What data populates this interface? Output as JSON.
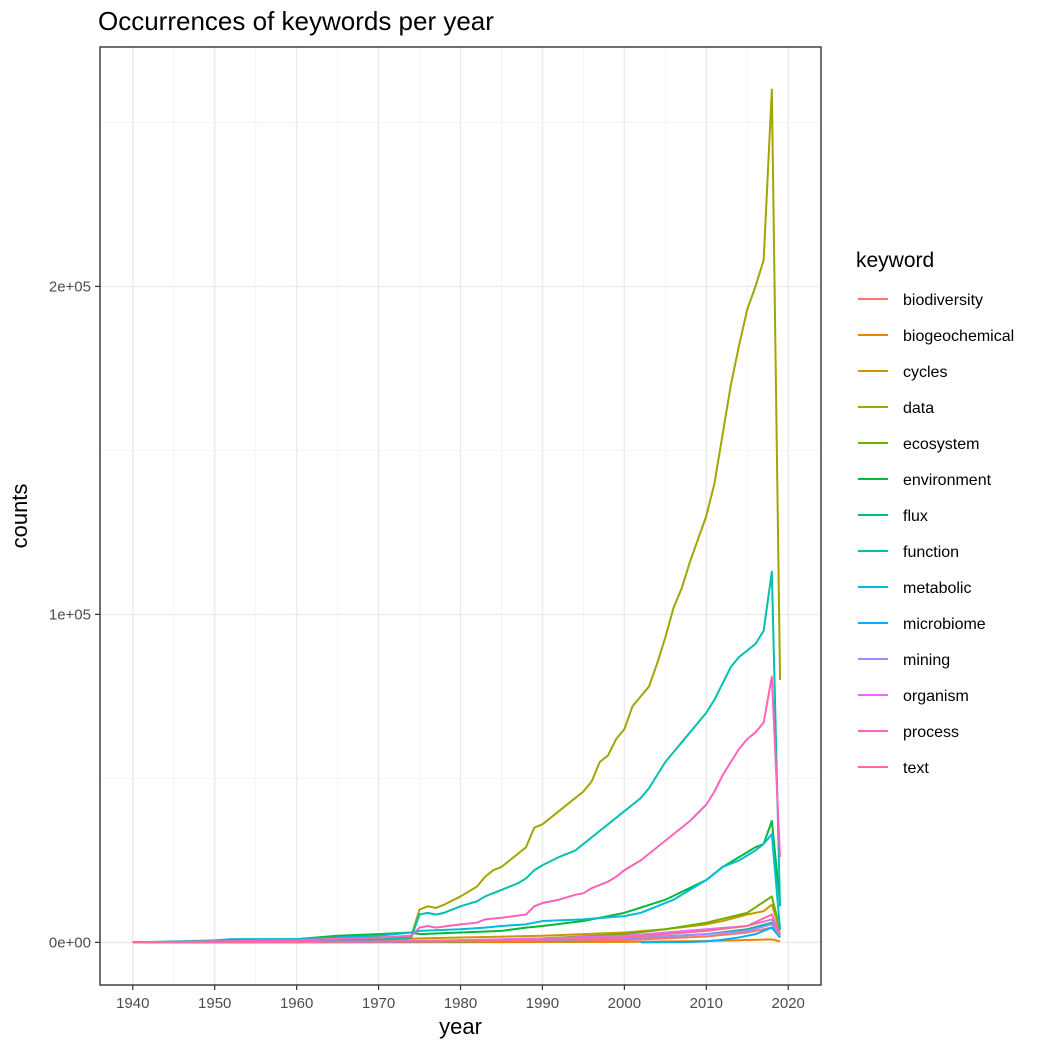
{
  "chart_data": {
    "type": "line",
    "title": "Occurrences of keywords per year",
    "xlabel": "year",
    "ylabel": "counts",
    "xlim": [
      1936,
      2024
    ],
    "ylim": [
      -13000,
      273000
    ],
    "x_ticks": [
      1940,
      1950,
      1960,
      1970,
      1980,
      1990,
      2000,
      2010,
      2020
    ],
    "x_tick_labels": [
      "1940",
      "1950",
      "1960",
      "1970",
      "1980",
      "1990",
      "2000",
      "2010",
      "2020"
    ],
    "y_ticks": [
      0,
      100000,
      200000
    ],
    "y_tick_labels": [
      "0e+00",
      "1e+05",
      "2e+05"
    ],
    "grid": true,
    "legend": {
      "title": "keyword",
      "position": "right"
    },
    "series": [
      {
        "name": "biodiversity",
        "color": "#F8766D",
        "points": [
          [
            1940,
            0
          ],
          [
            1970,
            50
          ],
          [
            1990,
            300
          ],
          [
            2000,
            700
          ],
          [
            2010,
            1800
          ],
          [
            2015,
            3000
          ],
          [
            2018,
            4500
          ],
          [
            2019,
            1500
          ]
        ]
      },
      {
        "name": "biogeochemical",
        "color": "#E58700",
        "points": [
          [
            1940,
            0
          ],
          [
            1980,
            50
          ],
          [
            2000,
            150
          ],
          [
            2010,
            400
          ],
          [
            2018,
            900
          ],
          [
            2019,
            300
          ]
        ]
      },
      {
        "name": "cycles",
        "color": "#C99800",
        "points": [
          [
            1940,
            0
          ],
          [
            1950,
            200
          ],
          [
            1960,
            400
          ],
          [
            1970,
            700
          ],
          [
            1975,
            1200
          ],
          [
            1980,
            1500
          ],
          [
            1990,
            2000
          ],
          [
            2000,
            3000
          ],
          [
            2005,
            4000
          ],
          [
            2010,
            5500
          ],
          [
            2012,
            6500
          ],
          [
            2015,
            8500
          ],
          [
            2017,
            9500
          ],
          [
            2018,
            11500
          ],
          [
            2019,
            3500
          ]
        ]
      },
      {
        "name": "data",
        "color": "#A3A500",
        "points": [
          [
            1940,
            0
          ],
          [
            1950,
            300
          ],
          [
            1960,
            600
          ],
          [
            1970,
            1200
          ],
          [
            1974,
            2000
          ],
          [
            1975,
            10000
          ],
          [
            1976,
            11000
          ],
          [
            1977,
            10500
          ],
          [
            1978,
            11500
          ],
          [
            1980,
            14000
          ],
          [
            1982,
            17000
          ],
          [
            1983,
            20000
          ],
          [
            1984,
            22000
          ],
          [
            1985,
            23000
          ],
          [
            1986,
            25000
          ],
          [
            1987,
            27000
          ],
          [
            1988,
            29000
          ],
          [
            1989,
            35000
          ],
          [
            1990,
            36000
          ],
          [
            1992,
            40000
          ],
          [
            1994,
            44000
          ],
          [
            1995,
            46000
          ],
          [
            1996,
            49000
          ],
          [
            1997,
            55000
          ],
          [
            1998,
            57000
          ],
          [
            1999,
            62000
          ],
          [
            2000,
            65000
          ],
          [
            2001,
            72000
          ],
          [
            2002,
            75000
          ],
          [
            2003,
            78000
          ],
          [
            2004,
            85000
          ],
          [
            2005,
            93000
          ],
          [
            2006,
            102000
          ],
          [
            2007,
            108000
          ],
          [
            2008,
            116000
          ],
          [
            2009,
            123000
          ],
          [
            2010,
            130000
          ],
          [
            2011,
            140000
          ],
          [
            2012,
            155000
          ],
          [
            2013,
            170000
          ],
          [
            2014,
            182000
          ],
          [
            2015,
            193000
          ],
          [
            2016,
            200000
          ],
          [
            2017,
            208000
          ],
          [
            2018,
            260000
          ],
          [
            2019,
            80000
          ]
        ]
      },
      {
        "name": "ecosystem",
        "color": "#6BB100",
        "points": [
          [
            1940,
            0
          ],
          [
            1970,
            200
          ],
          [
            1980,
            600
          ],
          [
            1990,
            1200
          ],
          [
            2000,
            2500
          ],
          [
            2005,
            4000
          ],
          [
            2010,
            6000
          ],
          [
            2015,
            9000
          ],
          [
            2018,
            14000
          ],
          [
            2019,
            4000
          ]
        ]
      },
      {
        "name": "environment",
        "color": "#00BA38",
        "points": [
          [
            1940,
            0
          ],
          [
            1950,
            300
          ],
          [
            1960,
            1000
          ],
          [
            1965,
            2000
          ],
          [
            1970,
            2500
          ],
          [
            1974,
            3000
          ],
          [
            1975,
            2500
          ],
          [
            1980,
            3000
          ],
          [
            1985,
            3500
          ],
          [
            1988,
            4500
          ],
          [
            1990,
            5000
          ],
          [
            1995,
            6500
          ],
          [
            2000,
            9000
          ],
          [
            2005,
            13000
          ],
          [
            2010,
            19000
          ],
          [
            2012,
            23000
          ],
          [
            2014,
            26000
          ],
          [
            2016,
            29000
          ],
          [
            2017,
            30000
          ],
          [
            2018,
            37000
          ],
          [
            2019,
            12000
          ]
        ]
      },
      {
        "name": "flux",
        "color": "#00BF7D",
        "points": [
          [
            1940,
            0
          ],
          [
            1970,
            100
          ],
          [
            1980,
            300
          ],
          [
            1990,
            600
          ],
          [
            2000,
            1200
          ],
          [
            2010,
            2500
          ],
          [
            2015,
            4000
          ],
          [
            2018,
            6000
          ],
          [
            2019,
            2000
          ]
        ]
      },
      {
        "name": "function",
        "color": "#00C0AF",
        "points": [
          [
            1940,
            0
          ],
          [
            1960,
            300
          ],
          [
            1970,
            800
          ],
          [
            1974,
            1500
          ],
          [
            1975,
            8500
          ],
          [
            1976,
            9000
          ],
          [
            1977,
            8500
          ],
          [
            1978,
            9000
          ],
          [
            1980,
            11000
          ],
          [
            1982,
            12500
          ],
          [
            1983,
            14000
          ],
          [
            1985,
            16000
          ],
          [
            1986,
            17000
          ],
          [
            1987,
            18000
          ],
          [
            1988,
            19500
          ],
          [
            1989,
            22000
          ],
          [
            1990,
            23500
          ],
          [
            1992,
            26000
          ],
          [
            1994,
            28000
          ],
          [
            1995,
            30000
          ],
          [
            1996,
            32000
          ],
          [
            1997,
            34000
          ],
          [
            1998,
            36000
          ],
          [
            1999,
            38000
          ],
          [
            2000,
            40000
          ],
          [
            2001,
            42000
          ],
          [
            2002,
            44000
          ],
          [
            2003,
            47000
          ],
          [
            2004,
            51000
          ],
          [
            2005,
            55000
          ],
          [
            2006,
            58000
          ],
          [
            2007,
            61000
          ],
          [
            2008,
            64000
          ],
          [
            2009,
            67000
          ],
          [
            2010,
            70000
          ],
          [
            2011,
            74000
          ],
          [
            2012,
            79000
          ],
          [
            2013,
            84000
          ],
          [
            2014,
            87000
          ],
          [
            2015,
            89000
          ],
          [
            2016,
            91000
          ],
          [
            2017,
            95000
          ],
          [
            2018,
            113000
          ],
          [
            2019,
            11000
          ]
        ]
      },
      {
        "name": "metabolic",
        "color": "#00BCD8",
        "points": [
          [
            1940,
            0
          ],
          [
            1950,
            600
          ],
          [
            1952,
            1000
          ],
          [
            1960,
            1000
          ],
          [
            1970,
            2000
          ],
          [
            1974,
            3000
          ],
          [
            1975,
            3500
          ],
          [
            1980,
            4000
          ],
          [
            1983,
            4500
          ],
          [
            1985,
            5000
          ],
          [
            1988,
            5500
          ],
          [
            1989,
            6000
          ],
          [
            1990,
            6500
          ],
          [
            1995,
            7000
          ],
          [
            2000,
            8000
          ],
          [
            2002,
            9000
          ],
          [
            2004,
            11000
          ],
          [
            2006,
            13000
          ],
          [
            2008,
            16000
          ],
          [
            2010,
            19000
          ],
          [
            2012,
            23000
          ],
          [
            2014,
            25000
          ],
          [
            2016,
            28000
          ],
          [
            2017,
            30000
          ],
          [
            2018,
            33000
          ],
          [
            2019,
            4000
          ]
        ]
      },
      {
        "name": "microbiome",
        "color": "#00B0F6",
        "points": [
          [
            2002,
            0
          ],
          [
            2008,
            100
          ],
          [
            2010,
            300
          ],
          [
            2012,
            800
          ],
          [
            2014,
            1500
          ],
          [
            2016,
            2500
          ],
          [
            2018,
            4500
          ],
          [
            2019,
            1500
          ]
        ]
      },
      {
        "name": "mining",
        "color": "#9590FF",
        "points": [
          [
            1940,
            0
          ],
          [
            1970,
            200
          ],
          [
            1980,
            400
          ],
          [
            1990,
            700
          ],
          [
            2000,
            1200
          ],
          [
            2005,
            1800
          ],
          [
            2010,
            2500
          ],
          [
            2015,
            3500
          ],
          [
            2018,
            5500
          ],
          [
            2019,
            2000
          ]
        ]
      },
      {
        "name": "organism",
        "color": "#E76BF3",
        "points": [
          [
            1940,
            0
          ],
          [
            1970,
            300
          ],
          [
            1980,
            700
          ],
          [
            1990,
            1200
          ],
          [
            2000,
            2000
          ],
          [
            2005,
            3000
          ],
          [
            2010,
            4000
          ],
          [
            2015,
            5000
          ],
          [
            2018,
            7000
          ],
          [
            2019,
            2500
          ]
        ]
      },
      {
        "name": "process",
        "color": "#FF62BC",
        "points": [
          [
            1940,
            0
          ],
          [
            1950,
            300
          ],
          [
            1960,
            700
          ],
          [
            1970,
            1500
          ],
          [
            1974,
            2000
          ],
          [
            1975,
            4500
          ],
          [
            1976,
            5000
          ],
          [
            1977,
            4500
          ],
          [
            1980,
            5500
          ],
          [
            1982,
            6000
          ],
          [
            1983,
            7000
          ],
          [
            1985,
            7500
          ],
          [
            1988,
            8500
          ],
          [
            1989,
            11000
          ],
          [
            1990,
            12000
          ],
          [
            1992,
            13000
          ],
          [
            1994,
            14500
          ],
          [
            1995,
            15000
          ],
          [
            1996,
            16500
          ],
          [
            1997,
            17500
          ],
          [
            1998,
            18500
          ],
          [
            1999,
            20000
          ],
          [
            2000,
            22000
          ],
          [
            2002,
            25000
          ],
          [
            2004,
            29000
          ],
          [
            2006,
            33000
          ],
          [
            2008,
            37000
          ],
          [
            2010,
            42000
          ],
          [
            2011,
            46000
          ],
          [
            2012,
            51000
          ],
          [
            2013,
            55000
          ],
          [
            2014,
            59000
          ],
          [
            2015,
            62000
          ],
          [
            2016,
            64000
          ],
          [
            2017,
            67000
          ],
          [
            2018,
            81000
          ],
          [
            2019,
            26000
          ]
        ]
      },
      {
        "name": "text",
        "color": "#FF6C91",
        "points": [
          [
            1940,
            0
          ],
          [
            1970,
            200
          ],
          [
            1980,
            400
          ],
          [
            1990,
            800
          ],
          [
            2000,
            1500
          ],
          [
            2005,
            2500
          ],
          [
            2010,
            3500
          ],
          [
            2015,
            5000
          ],
          [
            2018,
            8500
          ],
          [
            2019,
            2500
          ]
        ]
      }
    ]
  }
}
